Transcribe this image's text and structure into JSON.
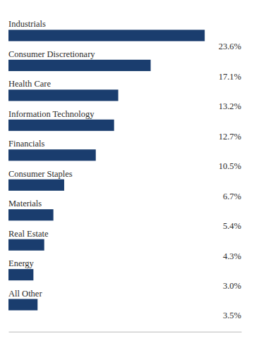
{
  "chart_data": {
    "type": "bar",
    "orientation": "horizontal",
    "categories": [
      "Industrials",
      "Consumer Discretionary",
      "Health Care",
      "Information Technology",
      "Financials",
      "Consumer Staples",
      "Materials",
      "Real Estate",
      "Energy",
      "All Other"
    ],
    "values": [
      23.6,
      17.1,
      13.2,
      12.7,
      10.5,
      6.7,
      5.4,
      4.3,
      3.0,
      3.5
    ],
    "value_labels": [
      "23.6%",
      "17.1%",
      "13.2%",
      "12.7%",
      "10.5%",
      "6.7%",
      "5.4%",
      "4.3%",
      "3.0%",
      "3.5%"
    ],
    "data_labels": true,
    "color": "#1a3d6e",
    "xlim": [
      0,
      28
    ],
    "grid": false,
    "tick_labels": "y"
  }
}
